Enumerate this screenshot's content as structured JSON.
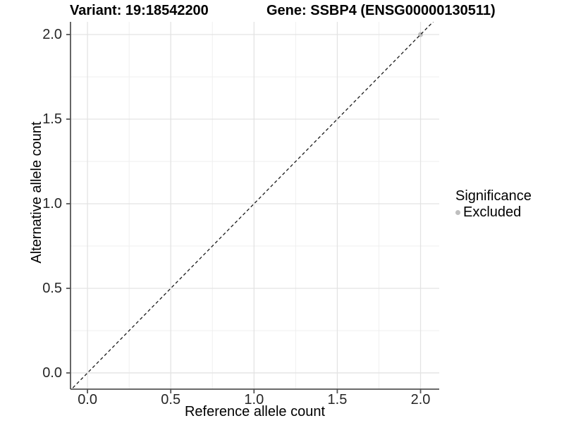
{
  "chart_data": {
    "type": "scatter",
    "title_left": "Variant: 19:18542200",
    "title_right": "Gene: SSBP4 (ENSG00000130511)",
    "xlabel": "Reference allele count",
    "ylabel": "Alternative allele count",
    "xlim": [
      -0.102,
      2.112
    ],
    "ylim": [
      -0.096,
      2.075
    ],
    "x_ticks": [
      {
        "value": 0.0,
        "label": "0.0"
      },
      {
        "value": 0.5,
        "label": "0.5"
      },
      {
        "value": 1.0,
        "label": "1.0"
      },
      {
        "value": 1.5,
        "label": "1.5"
      },
      {
        "value": 2.0,
        "label": "2.0"
      }
    ],
    "y_ticks": [
      {
        "value": 0.0,
        "label": "0.0"
      },
      {
        "value": 0.5,
        "label": "0.5"
      },
      {
        "value": 1.0,
        "label": "1.0"
      },
      {
        "value": 1.5,
        "label": "1.5"
      },
      {
        "value": 2.0,
        "label": "2.0"
      }
    ],
    "x_minor_ticks": [
      0.25,
      0.75,
      1.25,
      1.75
    ],
    "y_minor_ticks": [
      0.25,
      0.75,
      1.25,
      1.75
    ],
    "grid": "major-and-minor",
    "reference_line": {
      "kind": "abline",
      "slope": 1,
      "intercept": 0,
      "style": "dashed",
      "color": "#1a1a1a"
    },
    "series": [
      {
        "name": "Excluded",
        "color": "#bfbfbf",
        "points": [
          {
            "x": 2.0,
            "y": 2.0
          }
        ]
      }
    ],
    "legend": {
      "title": "Significance",
      "position": "right",
      "items": [
        {
          "label": "Excluded",
          "color": "#bfbfbf"
        }
      ]
    },
    "colors": {
      "axis_line": "#555555",
      "grid_major": "#e3e3e3",
      "grid_minor": "#efefef",
      "tick_text": "#262626"
    }
  }
}
